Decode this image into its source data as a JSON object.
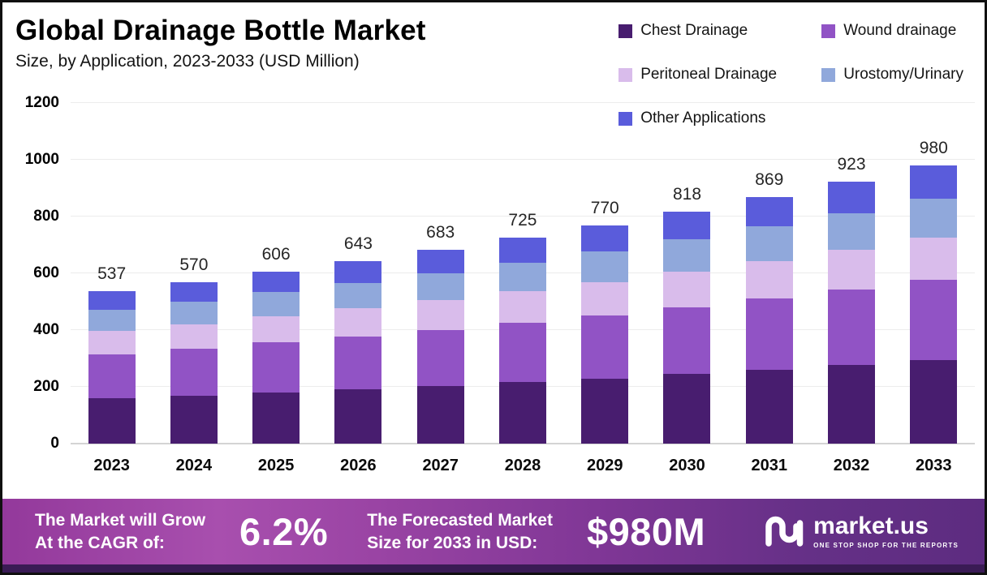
{
  "header": {
    "title": "Global Drainage Bottle Market",
    "subtitle": "Size, by Application, 2023-2033 (USD Million)"
  },
  "legend": [
    {
      "label": "Chest Drainage",
      "color": "#481d6f"
    },
    {
      "label": "Wound drainage",
      "color": "#9153c5"
    },
    {
      "label": "Peritoneal Drainage",
      "color": "#d9bceb"
    },
    {
      "label": "Urostomy/Urinary",
      "color": "#90a8db"
    },
    {
      "label": "Other Applications",
      "color": "#5a5cdb"
    }
  ],
  "chart_data": {
    "type": "bar",
    "stacked": true,
    "title": "Global Drainage Bottle Market Size, by Application, 2023-2033 (USD Million)",
    "xlabel": "",
    "ylabel": "",
    "ylim": [
      0,
      1200
    ],
    "yticks": [
      0,
      200,
      400,
      600,
      800,
      1000,
      1200
    ],
    "grid": true,
    "legend_position": "top-right",
    "categories": [
      "2023",
      "2024",
      "2025",
      "2026",
      "2027",
      "2028",
      "2029",
      "2030",
      "2031",
      "2032",
      "2033"
    ],
    "totals": [
      537,
      570,
      606,
      643,
      683,
      725,
      770,
      818,
      869,
      923,
      980
    ],
    "series": [
      {
        "name": "Chest Drainage",
        "color": "#481d6f",
        "values": [
          160,
          170,
          181,
          192,
          204,
          217,
          230,
          245,
          260,
          276,
          293
        ]
      },
      {
        "name": "Wound drainage",
        "color": "#9153c5",
        "values": [
          155,
          164,
          175,
          186,
          197,
          209,
          222,
          236,
          251,
          266,
          283
        ]
      },
      {
        "name": "Peritoneal Drainage",
        "color": "#d9bceb",
        "values": [
          82,
          87,
          93,
          98,
          105,
          111,
          118,
          125,
          133,
          141,
          150
        ]
      },
      {
        "name": "Urostomy/Urinary",
        "color": "#90a8db",
        "values": [
          75,
          80,
          85,
          90,
          95,
          101,
          107,
          114,
          121,
          129,
          137
        ]
      },
      {
        "name": "Other Applications",
        "color": "#5a5cdb",
        "values": [
          65,
          69,
          72,
          77,
          82,
          87,
          93,
          98,
          104,
          111,
          117
        ]
      }
    ]
  },
  "banner": {
    "cagr_label_line1": "The Market will Grow",
    "cagr_label_line2": "At the CAGR of:",
    "cagr_value": "6.2%",
    "forecast_label_line1": "The Forecasted Market",
    "forecast_label_line2": "Size for 2033 in USD:",
    "forecast_value": "$980M",
    "brand_name": "market.us",
    "brand_tagline": "ONE STOP SHOP FOR THE REPORTS"
  }
}
